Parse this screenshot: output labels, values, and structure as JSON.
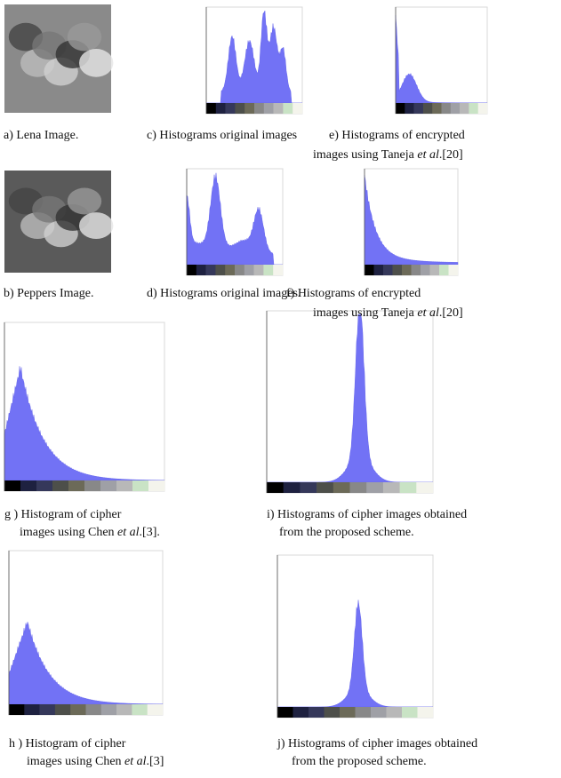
{
  "panels": [
    {
      "caption": [
        [
          "a) Lena Image."
        ]
      ]
    },
    {
      "caption": [
        [
          "c) Histograms original images"
        ]
      ]
    },
    {
      "caption": [
        [
          "e) Histograms of encrypted"
        ],
        [
          "images using Taneja ",
          "et al",
          ".[20]"
        ]
      ]
    },
    {
      "caption": [
        [
          "b) Peppers Image."
        ]
      ]
    },
    {
      "caption": [
        [
          "d) Histograms original images."
        ]
      ]
    },
    {
      "caption": [
        [
          "f) Histograms of encrypted"
        ],
        [
          "images using Taneja ",
          "et al",
          ".[20]"
        ]
      ]
    },
    {
      "caption": [
        [
          "g ) Histogram of cipher"
        ],
        [
          "images using Chen ",
          "et al",
          ".[3]."
        ]
      ]
    },
    {
      "caption": [
        [
          "i) Histograms of cipher images obtained"
        ],
        [
          "from the proposed scheme."
        ]
      ]
    },
    {
      "caption": [
        [
          "h ) Histogram of cipher"
        ],
        [
          "images using Chen ",
          "et al",
          ".[3]"
        ]
      ]
    },
    {
      "caption": [
        [
          "j) Histograms of cipher images obtained"
        ],
        [
          "from the proposed scheme."
        ]
      ]
    }
  ]
}
